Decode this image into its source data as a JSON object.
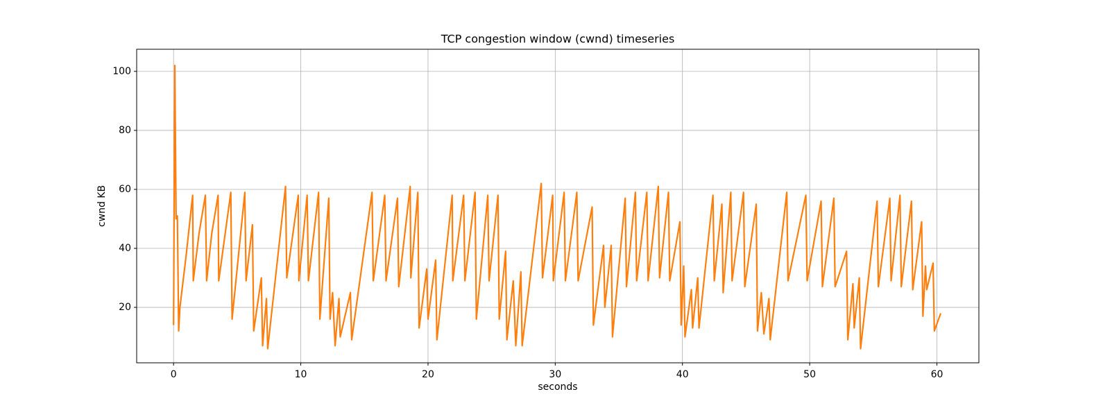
{
  "chart_data": {
    "type": "line",
    "title": "TCP congestion window (cwnd) timeseries",
    "x_label": "seconds",
    "y_label": "cwnd KB",
    "x": [
      0.0,
      0.1,
      0.2,
      0.3,
      0.4,
      0.5,
      1.0,
      1.5,
      1.55,
      2.0,
      2.5,
      2.6,
      3.0,
      3.5,
      3.55,
      4.5,
      4.6,
      5.6,
      5.7,
      6.2,
      6.3,
      6.9,
      7.0,
      7.3,
      7.4,
      8.8,
      8.9,
      9.8,
      9.85,
      10.5,
      10.6,
      11.4,
      11.5,
      12.2,
      12.3,
      12.5,
      12.7,
      13.0,
      13.1,
      13.9,
      14.0,
      15.6,
      15.7,
      16.6,
      16.7,
      17.6,
      17.7,
      18.6,
      18.65,
      19.2,
      19.3,
      19.9,
      20.0,
      20.6,
      20.7,
      21.9,
      21.95,
      22.8,
      22.9,
      23.7,
      23.8,
      24.7,
      24.8,
      25.5,
      25.6,
      26.1,
      26.2,
      26.7,
      26.9,
      27.3,
      27.4,
      28.9,
      29.0,
      29.8,
      29.85,
      30.7,
      30.8,
      31.7,
      31.8,
      32.9,
      33.0,
      33.8,
      33.9,
      34.4,
      34.5,
      35.5,
      35.6,
      36.3,
      36.4,
      37.2,
      37.3,
      38.1,
      38.2,
      38.9,
      39.0,
      39.8,
      39.9,
      40.1,
      40.2,
      40.7,
      40.8,
      41.2,
      41.3,
      42.4,
      42.5,
      43.1,
      43.2,
      43.8,
      43.9,
      44.8,
      44.9,
      45.8,
      45.9,
      46.2,
      46.4,
      46.8,
      46.9,
      48.2,
      48.3,
      49.7,
      49.8,
      50.9,
      51.0,
      51.9,
      52.0,
      52.9,
      53.0,
      53.4,
      53.5,
      53.9,
      54.0,
      55.3,
      55.4,
      56.3,
      56.4,
      57.1,
      57.2,
      58.0,
      58.1,
      58.8,
      58.9,
      59.1,
      59.2,
      59.7,
      59.8,
      60.3
    ],
    "series": [
      {
        "name": "cwnd",
        "color": "#ff7f0e",
        "values": [
          14,
          102,
          50,
          51,
          12,
          20,
          38,
          58,
          29,
          45,
          58,
          29,
          45,
          58,
          29,
          59,
          16,
          59,
          29,
          48,
          12,
          30,
          7,
          23,
          6,
          61,
          30,
          58,
          29,
          58,
          29,
          59,
          16,
          57,
          16,
          25,
          7,
          23,
          10,
          25,
          9,
          59,
          29,
          58,
          29,
          57,
          27,
          61,
          30,
          59,
          13,
          33,
          16,
          36,
          9,
          58,
          29,
          58,
          29,
          59,
          16,
          58,
          29,
          58,
          16,
          39,
          9,
          29,
          7,
          32,
          7,
          62,
          30,
          58,
          29,
          59,
          29,
          59,
          29,
          54,
          14,
          41,
          20,
          41,
          10,
          57,
          27,
          59,
          29,
          59,
          29,
          61,
          30,
          59,
          29,
          49,
          14,
          34,
          10,
          26,
          13,
          30,
          13,
          58,
          29,
          55,
          25,
          59,
          29,
          59,
          27,
          55,
          12,
          25,
          11,
          23,
          9,
          59,
          29,
          58,
          29,
          56,
          27,
          57,
          27,
          39,
          9,
          28,
          13,
          30,
          6,
          56,
          27,
          57,
          29,
          58,
          27,
          56,
          26,
          49,
          17,
          34,
          26,
          35,
          12,
          18
        ]
      }
    ],
    "xlim": [
      -2.9,
      63.3
    ],
    "ylim": [
      1.2,
      107.5
    ],
    "xticks": [
      0,
      10,
      20,
      30,
      40,
      50,
      60
    ],
    "yticks": [
      20,
      40,
      60,
      80,
      100
    ],
    "grid": true
  }
}
